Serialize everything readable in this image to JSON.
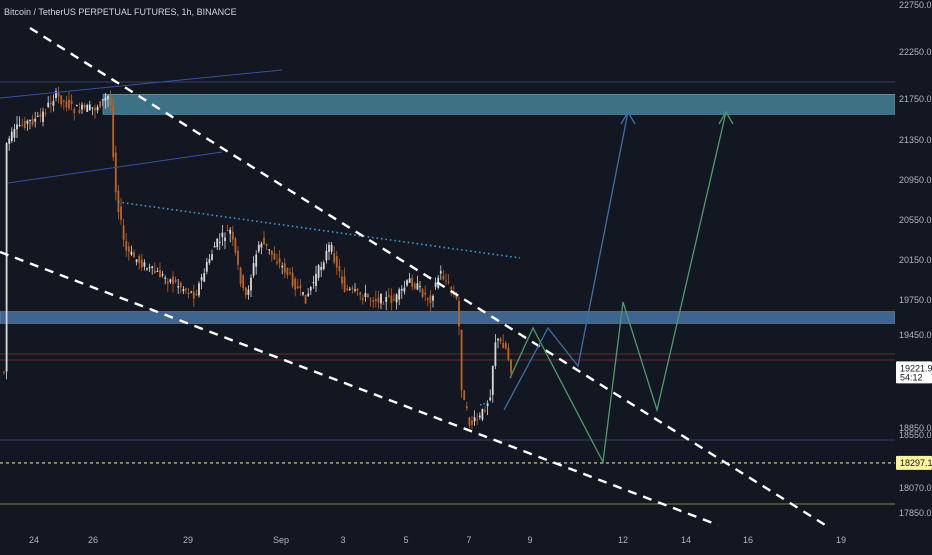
{
  "header": {
    "title": "Bitcoin / TetherUS PERPETUAL FUTURES, 1h, BINANCE"
  },
  "colors": {
    "background": "#131722",
    "candle_up": "#d8d8d8",
    "candle_down": "#c0631f",
    "zone_fill": "#4a8fa8",
    "support_line": "#e6e36b",
    "trend_dash": "#ffffff",
    "blue_path": "#3e6fa8",
    "green_path": "#4f9a6a",
    "dotted_line": "#3aa0d8",
    "axis_text": "#b2b5be",
    "price_label_bg": "#ffffff",
    "yellow_label_bg": "#fff59d"
  },
  "chart_data": {
    "type": "candlestick",
    "title": "Bitcoin / TetherUS PERPETUAL FUTURES, 1h, BINANCE",
    "x_tick_labels": [
      "24",
      "26",
      "29",
      "Sep",
      "3",
      "5",
      "7",
      "9",
      "12",
      "14",
      "16",
      "19"
    ],
    "y_tick_labels": [
      "22750.0",
      "22250.0",
      "21750.0",
      "21350.0",
      "20950.0",
      "20550.0",
      "20150.0",
      "19750.0",
      "19450.0",
      "18850.0",
      "18550.0",
      "18070.0",
      "17850.0"
    ],
    "y_range": [
      17770,
      22790
    ],
    "current_price": "19221.9",
    "countdown": "54:12",
    "support_level": "18297.1",
    "resistance_zone": [
      21600,
      21800
    ],
    "breakout_zone": [
      19550,
      19650
    ],
    "path_a_label": "Green path",
    "path_b_label": "Blue path"
  }
}
